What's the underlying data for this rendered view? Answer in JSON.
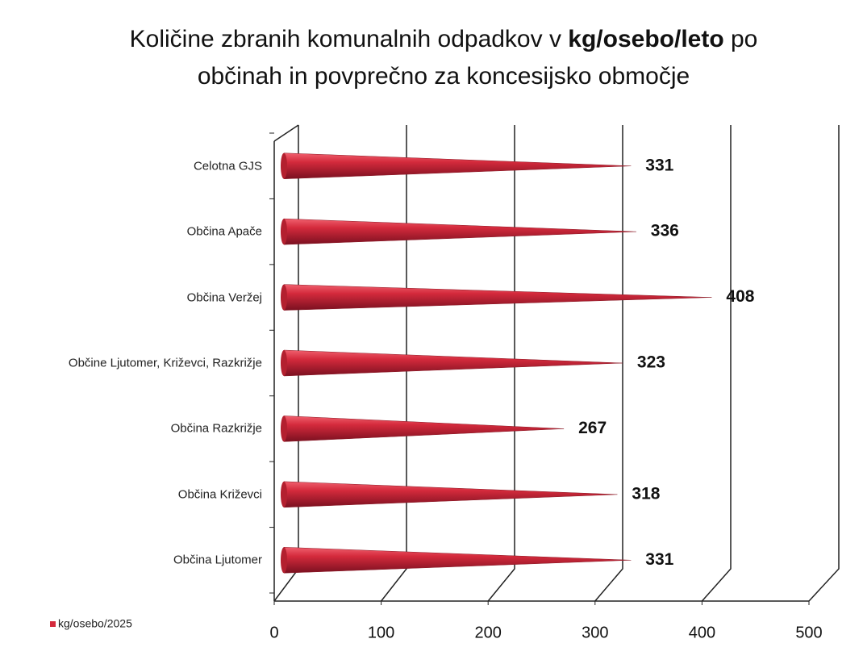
{
  "chart_data": {
    "type": "cone-bar",
    "title": [
      "Količine zbranih komunalnih odpadkov  v ",
      "kg/osebo/leto",
      " po",
      "občinah in povprečno za koncesijsko območje"
    ],
    "categories": [
      "Celotna GJS",
      "Občina Apače",
      "Občina Veržej",
      "Občine Ljutomer, Križevci, Razkrižje",
      "Občina Razkrižje",
      "Občina Križevci",
      "Občina Ljutomer"
    ],
    "series": [
      {
        "name": "kg/osebo/2025",
        "color": "#d42a3c",
        "values": [
          331,
          336,
          408,
          323,
          267,
          318,
          331
        ]
      }
    ],
    "xlim": [
      0,
      500
    ],
    "xticks": [
      0,
      100,
      200,
      300,
      400,
      500
    ],
    "grid": true,
    "legend": "bottom-left"
  }
}
